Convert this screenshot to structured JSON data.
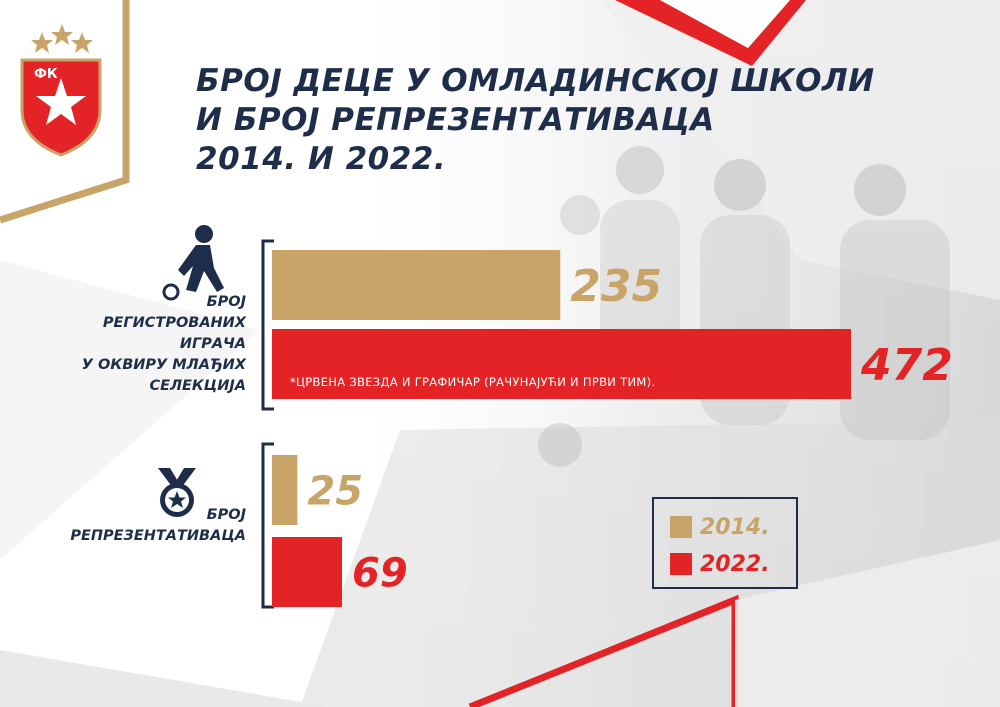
{
  "header": {
    "title_lines": [
      "БРОЈ ДЕЦЕ У ОМЛАДИНСКОЈ ШКОЛИ",
      "И БРОЈ РЕПРЕЗЕНТАТИВАЦА",
      "2014. И 2022."
    ],
    "logo_text": "ФК"
  },
  "colors": {
    "navy": "#1d2d4a",
    "gold": "#c9a468",
    "red": "#e32326",
    "white": "#ffffff"
  },
  "icons": [
    "football-player-icon",
    "medal-icon",
    "red-star-logo-icon"
  ],
  "chart_data": {
    "type": "bar",
    "orientation": "horizontal",
    "groups": [
      {
        "label_lines": [
          "БРОЈ",
          "РЕГИСТРОВАНИХ",
          "ИГРАЧА",
          "У ОКВИРУ МЛАЂИХ",
          "СЕЛЕКЦИЈА"
        ],
        "icon": "football-player-icon",
        "values": [
          235,
          472
        ],
        "note": "*ЦРВЕНА ЗВЕЗДА И ГРАФИЧАР (РАЧУНАЈУЋИ И ПРВИ ТИМ)."
      },
      {
        "label_lines": [
          "БРОЈ",
          "РЕПРЕЗЕНТАТИВАЦА"
        ],
        "icon": "medal-icon",
        "values": [
          25,
          69
        ]
      }
    ],
    "series": [
      {
        "name": "2014.",
        "color": "#c9a468"
      },
      {
        "name": "2022.",
        "color": "#e32326"
      }
    ],
    "legend": {
      "position": "bottom-right"
    },
    "grid": false
  }
}
